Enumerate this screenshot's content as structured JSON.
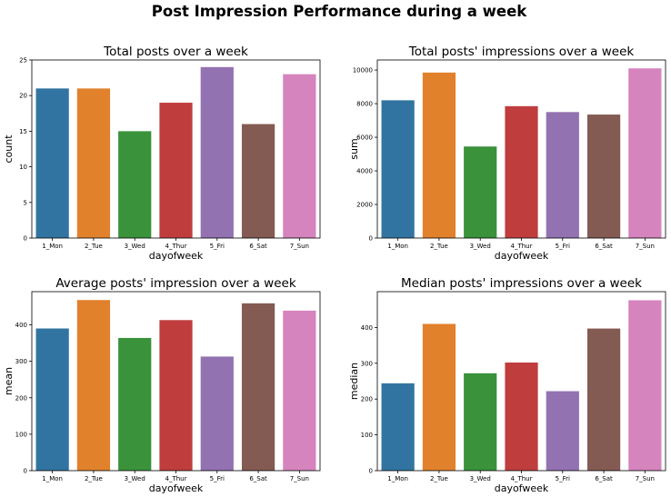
{
  "figure": {
    "suptitle": "Post Impression Performance during a week"
  },
  "chart_data": [
    {
      "type": "bar",
      "title": "Total posts over a week",
      "xlabel": "dayofweek",
      "ylabel": "count",
      "categories": [
        "1_Mon",
        "2_Tue",
        "3_Wed",
        "4_Thur",
        "5_Fri",
        "6_Sat",
        "7_Sun"
      ],
      "values": [
        21,
        21,
        15,
        19,
        24,
        16,
        23
      ],
      "ylim": [
        0,
        25
      ],
      "yticks": [
        0,
        5,
        10,
        15,
        20,
        25
      ],
      "grid": false
    },
    {
      "type": "bar",
      "title": "Total posts' impressions over a week",
      "xlabel": "dayofweek",
      "ylabel": "sum",
      "categories": [
        "1_Mon",
        "2_Tue",
        "3_Wed",
        "4_Thur",
        "5_Fri",
        "6_Sat",
        "7_Sun"
      ],
      "values": [
        8200,
        9850,
        5450,
        7850,
        7500,
        7350,
        10100
      ],
      "ylim": [
        0,
        10600
      ],
      "yticks": [
        0,
        2000,
        4000,
        6000,
        8000,
        10000
      ],
      "grid": false
    },
    {
      "type": "bar",
      "title": "Average posts' impression over a week",
      "xlabel": "dayofweek",
      "ylabel": "mean",
      "categories": [
        "1_Mon",
        "2_Tue",
        "3_Wed",
        "4_Thur",
        "5_Fri",
        "6_Sat",
        "7_Sun"
      ],
      "values": [
        390,
        468,
        364,
        413,
        313,
        459,
        439
      ],
      "ylim": [
        0,
        491
      ],
      "yticks": [
        0,
        100,
        200,
        300,
        400
      ],
      "grid": false
    },
    {
      "type": "bar",
      "title": "Median posts' impressions over a week",
      "xlabel": "dayofweek",
      "ylabel": "median",
      "categories": [
        "1_Mon",
        "2_Tue",
        "3_Wed",
        "4_Thur",
        "5_Fri",
        "6_Sat",
        "7_Sun"
      ],
      "values": [
        244,
        410,
        272,
        302,
        222,
        397,
        476
      ],
      "ylim": [
        0,
        500
      ],
      "yticks": [
        0,
        100,
        200,
        300,
        400
      ],
      "grid": false
    }
  ],
  "colors": [
    "#3274a1",
    "#e1812c",
    "#3a923a",
    "#c03d3e",
    "#9372b2",
    "#845b53",
    "#d684bd"
  ]
}
